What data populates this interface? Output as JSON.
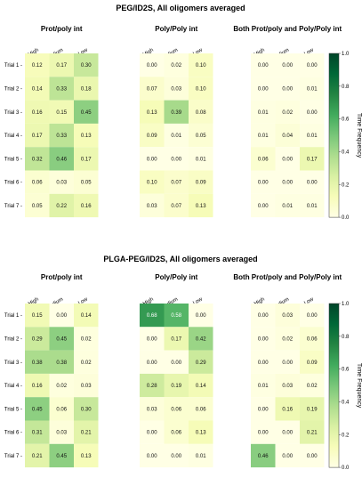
{
  "chart_data": [
    {
      "type": "heatmap",
      "title": "PEG/ID2S, All oligomers averaged",
      "panel_titles": [
        "Prot/poly int",
        "Poly/Poly int",
        "Both Prot/poly and Poly/Poly int"
      ],
      "columns": [
        "High",
        "Medium",
        "Low"
      ],
      "rows": [
        "Trial 1",
        "Trial 2",
        "Trial 3",
        "Trial 4",
        "Trial 5",
        "Trial 6",
        "Trial 7"
      ],
      "panels": [
        [
          [
            "0.12",
            "0.17",
            "0.30"
          ],
          [
            "0.14",
            "0.33",
            "0.18"
          ],
          [
            "0.16",
            "0.15",
            "0.45"
          ],
          [
            "0.17",
            "0.33",
            "0.13"
          ],
          [
            "0.32",
            "0.46",
            "0.17"
          ],
          [
            "0.06",
            "0.03",
            "0.05"
          ],
          [
            "0.05",
            "0.22",
            "0.16"
          ]
        ],
        [
          [
            "0.00",
            "0.02",
            "0.10"
          ],
          [
            "0.07",
            "0.03",
            "0.10"
          ],
          [
            "0.13",
            "0.39",
            "0.08"
          ],
          [
            "0.09",
            "0.01",
            "0.05"
          ],
          [
            "0.00",
            "0.00",
            "0.01"
          ],
          [
            "0.10",
            "0.07",
            "0.09"
          ],
          [
            "0.03",
            "0.07",
            "0.13"
          ]
        ],
        [
          [
            "0.00",
            "0.00",
            "0.00"
          ],
          [
            "0.00",
            "0.00",
            "0.01"
          ],
          [
            "0.01",
            "0.02",
            "0.00"
          ],
          [
            "0.01",
            "0.04",
            "0.01"
          ],
          [
            "0.06",
            "0.00",
            "0.17"
          ],
          [
            "0.00",
            "0.00",
            "0.00"
          ],
          [
            "0.00",
            "0.01",
            "0.01"
          ]
        ]
      ],
      "colorbar": {
        "label": "Time Frequency",
        "ticks": [
          "0.0",
          "0.2",
          "0.4",
          "0.6",
          "0.8",
          "1.0"
        ],
        "range": [
          0,
          1
        ]
      }
    },
    {
      "type": "heatmap",
      "title": "PLGA-PEG/ID2S, All oligomers averaged",
      "panel_titles": [
        "Prot/poly int",
        "Poly/Poly int",
        "Both Prot/poly and Poly/Poly int"
      ],
      "columns": [
        "High",
        "Medium",
        "Low"
      ],
      "rows": [
        "Trial 1",
        "Trial 2",
        "Trial 3",
        "Trial 4",
        "Trial 5",
        "Trial 6",
        "Trial 7"
      ],
      "panels": [
        [
          [
            "0.15",
            "0.00",
            "0.14"
          ],
          [
            "0.29",
            "0.45",
            "0.02"
          ],
          [
            "0.38",
            "0.38",
            "0.02"
          ],
          [
            "0.16",
            "0.02",
            "0.03"
          ],
          [
            "0.45",
            "0.06",
            "0.30"
          ],
          [
            "0.31",
            "0.03",
            "0.21"
          ],
          [
            "0.21",
            "0.45",
            "0.13"
          ]
        ],
        [
          [
            "0.68",
            "0.58",
            "0.00"
          ],
          [
            "0.00",
            "0.17",
            "0.42"
          ],
          [
            "0.00",
            "0.00",
            "0.29"
          ],
          [
            "0.28",
            "0.19",
            "0.14"
          ],
          [
            "0.03",
            "0.06",
            "0.06"
          ],
          [
            "0.00",
            "0.06",
            "0.13"
          ],
          [
            "0.00",
            "0.00",
            "0.01"
          ]
        ],
        [
          [
            "0.00",
            "0.03",
            "0.00"
          ],
          [
            "0.00",
            "0.02",
            "0.06"
          ],
          [
            "0.00",
            "0.00",
            "0.09"
          ],
          [
            "0.01",
            "0.03",
            "0.02"
          ],
          [
            "0.00",
            "0.16",
            "0.19"
          ],
          [
            "0.00",
            "0.00",
            "0.21"
          ],
          [
            "0.46",
            "0.00",
            "0.00"
          ]
        ]
      ],
      "colorbar": {
        "label": "Time Frequency",
        "ticks": [
          "0.0",
          "0.2",
          "0.4",
          "0.6",
          "0.8",
          "1.0"
        ],
        "range": [
          0,
          1
        ]
      }
    }
  ]
}
